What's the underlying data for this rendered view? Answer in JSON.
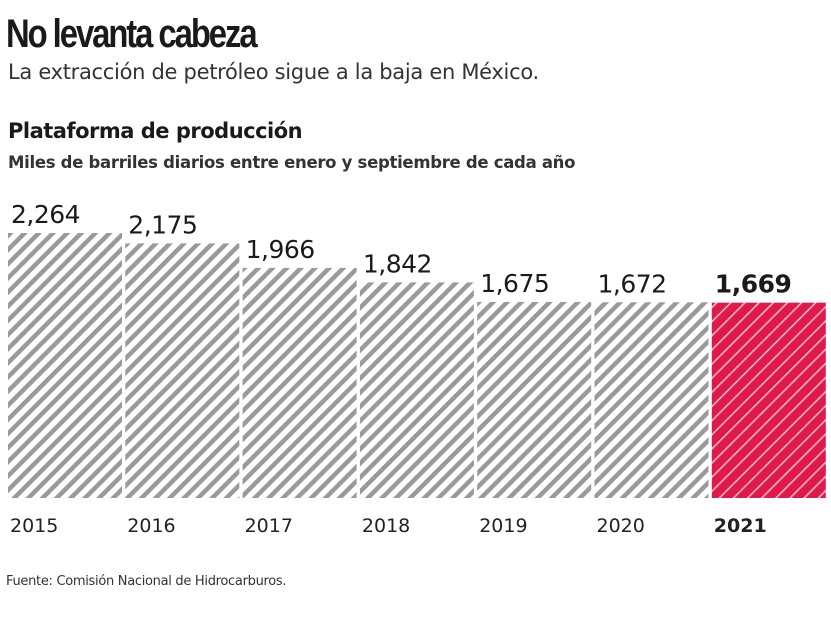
{
  "title": "No levanta cabeza",
  "subtitle": "La extracción de petróleo sigue a la baja en México.",
  "source": "Fuente: Comisión Nacional de Hidrocarburos.",
  "chart_data": {
    "type": "bar",
    "title": "Plataforma de producción",
    "subtitle": "Miles de barriles diarios entre enero y septiembre de cada año",
    "categories": [
      "2015",
      "2016",
      "2017",
      "2018",
      "2019",
      "2020",
      "2021"
    ],
    "values": [
      2264,
      2175,
      1966,
      1842,
      1675,
      1672,
      1669
    ],
    "value_labels": [
      "2,264",
      "2,175",
      "1,966",
      "1,842",
      "1,675",
      "1,672",
      "1,669"
    ],
    "highlight": "2021",
    "colors": {
      "default": "#9a9a9a",
      "highlight": "#e0194a"
    },
    "ylim": [
      0,
      2264
    ],
    "grid": false
  }
}
